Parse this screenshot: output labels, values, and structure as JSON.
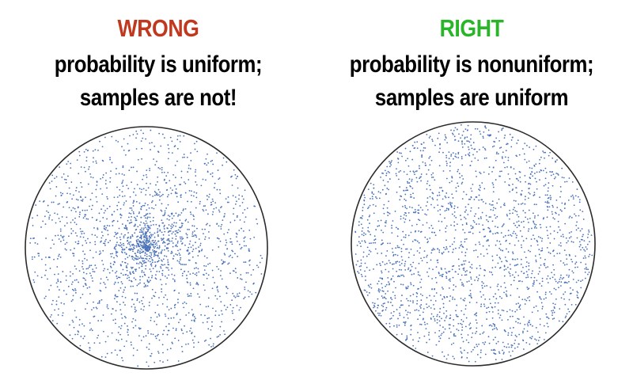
{
  "panels": [
    {
      "verdict": "WRONG",
      "verdict_color": "#c0391e",
      "line1": "probability is uniform;",
      "line2": "samples are not!",
      "sampling": "center-concentrated",
      "sample_count": 2000
    },
    {
      "verdict": "RIGHT",
      "verdict_color": "#28b628",
      "line1": "probability is nonuniform;",
      "line2": "samples are uniform",
      "sampling": "uniform-area",
      "sample_count": 2000
    }
  ],
  "dot_color": "#4a72b8",
  "circle_color": "#2b2b2b"
}
